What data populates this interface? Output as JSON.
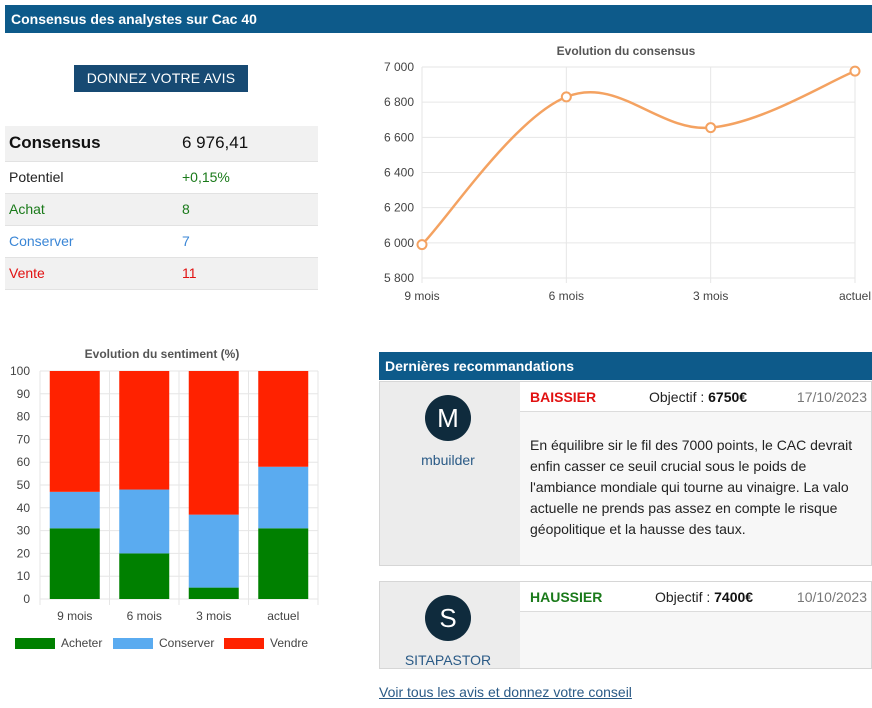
{
  "page_title": "Consensus des analystes sur Cac 40",
  "vote_button": "DONNEZ VOTRE AVIS",
  "consensus_table": {
    "consensus_label": "Consensus",
    "consensus_value": "6 976,41",
    "potentiel_label": "Potentiel",
    "potentiel_value": "+0,15%",
    "achat_label": "Achat",
    "achat_value": "8",
    "conserver_label": "Conserver",
    "conserver_value": "7",
    "vente_label": "Vente",
    "vente_value": "11"
  },
  "colors": {
    "header_bg": "#0d5a8a",
    "buy": "#1a7a1a",
    "hold": "#3a86d6",
    "sell": "#e11111",
    "line": "#f4a261",
    "bar_buy": "#008000",
    "bar_hold": "#5aabf0",
    "bar_sell": "#ff2200"
  },
  "chart_data": [
    {
      "type": "line",
      "title": "Evolution du consensus",
      "categories": [
        "9 mois",
        "6 mois",
        "3 mois",
        "actuel"
      ],
      "values": [
        5990,
        6830,
        6655,
        6976.41
      ],
      "ylim": [
        5800,
        7000
      ],
      "yticks": [
        5800,
        6000,
        6200,
        6400,
        6600,
        6800,
        7000
      ],
      "ytick_labels": [
        "5 800",
        "6 000",
        "6 200",
        "6 400",
        "6 600",
        "6 800",
        "7 000"
      ],
      "grid": true
    },
    {
      "type": "bar",
      "stacked": true,
      "title": "Evolution du sentiment (%)",
      "categories": [
        "9 mois",
        "6 mois",
        "3 mois",
        "actuel"
      ],
      "series": [
        {
          "name": "Acheter",
          "values": [
            31,
            20,
            5,
            31
          ]
        },
        {
          "name": "Conserver",
          "values": [
            16,
            28,
            32,
            27
          ]
        },
        {
          "name": "Vendre",
          "values": [
            53,
            52,
            63,
            42
          ]
        }
      ],
      "ylim": [
        0,
        100
      ],
      "yticks": [
        0,
        10,
        20,
        30,
        40,
        50,
        60,
        70,
        80,
        90,
        100
      ],
      "legend": "bottom",
      "grid": true
    }
  ],
  "recommendations_title": "Dernières recommandations",
  "recommendations": [
    {
      "avatar_letter": "M",
      "author": "mbuilder",
      "signal": "BAISSIER",
      "objective_label": "Objectif :",
      "objective_value": "6750€",
      "date": "17/10/2023",
      "text": "En équilibre sir le fil des 7000 points, le CAC devrait enfin casser ce seuil crucial sous le poids de l'ambiance mondiale qui tourne au vinaigre. La valo actuelle ne prends pas assez en compte le risque géopolitique et la hausse des taux."
    },
    {
      "avatar_letter": "S",
      "author": "SITAPASTOR",
      "signal": "HAUSSIER",
      "objective_label": "Objectif :",
      "objective_value": "7400€",
      "date": "10/10/2023",
      "text": ""
    }
  ],
  "all_link": "Voir tous les avis et donnez votre conseil"
}
